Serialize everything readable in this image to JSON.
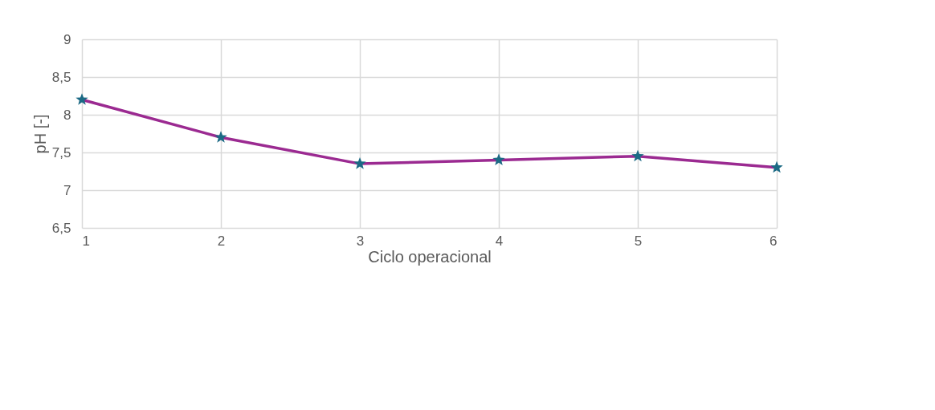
{
  "chart_data": {
    "type": "line",
    "xlabel": "Ciclo operacional",
    "ylabel": "pH [-]",
    "x": [
      1,
      2,
      3,
      4,
      5,
      6
    ],
    "series": [
      {
        "color": "#9b2a91",
        "values": [
          8.2,
          7.7,
          7.35,
          7.4,
          7.45,
          7.3
        ]
      }
    ],
    "xlim": [
      1,
      6
    ],
    "xticks": [
      1,
      2,
      3,
      4,
      5,
      6
    ],
    "ylim": [
      6.5,
      9
    ],
    "yticks": [
      {
        "value": 6.5,
        "label": "6,5"
      },
      7,
      {
        "value": 7.5,
        "label": "7,5"
      },
      8,
      {
        "value": 8.5,
        "label": "8,5"
      },
      9
    ],
    "grid": true,
    "marker": "star",
    "line_style": "solid"
  }
}
